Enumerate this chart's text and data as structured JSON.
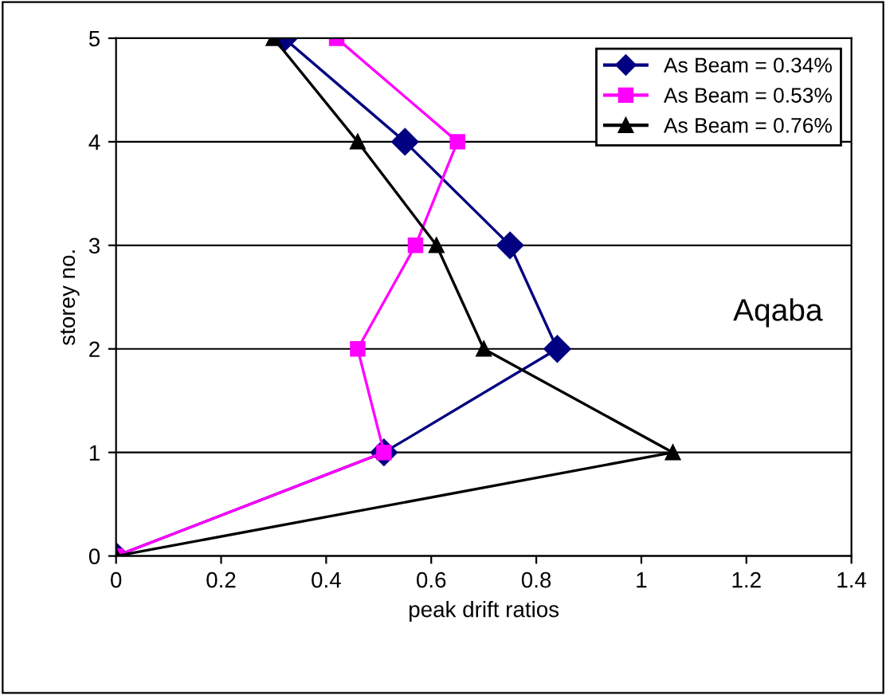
{
  "chart_data": {
    "type": "line",
    "xlabel": "peak drift ratios",
    "ylabel": "storey no.",
    "annotations": [
      "Aqaba"
    ],
    "xlim": [
      0,
      1.4
    ],
    "xticks": [
      0,
      0.2,
      0.4,
      0.6,
      0.8,
      1,
      1.2,
      1.4
    ],
    "ylim": [
      0,
      5
    ],
    "yticks": [
      0,
      1,
      2,
      3,
      4,
      5
    ],
    "grid": "y",
    "legend": "top right",
    "series": [
      {
        "name": "As Beam = 0.34%",
        "color": "#000080",
        "marker": "diamond",
        "x": [
          0,
          0.51,
          0.84,
          0.75,
          0.55,
          0.32
        ],
        "values": [
          0,
          1,
          2,
          3,
          4,
          5
        ]
      },
      {
        "name": "As Beam = 0.53%",
        "color": "#ff00ff",
        "marker": "square",
        "x": [
          0,
          0.51,
          0.46,
          0.57,
          0.65,
          0.42
        ],
        "values": [
          0,
          1,
          2,
          3,
          4,
          5
        ]
      },
      {
        "name": "As Beam = 0.76%",
        "color": "#000000",
        "marker": "triangle",
        "x": [
          0,
          1.06,
          0.7,
          0.61,
          0.46,
          0.3
        ],
        "values": [
          0,
          1,
          2,
          3,
          4,
          5
        ]
      }
    ]
  }
}
